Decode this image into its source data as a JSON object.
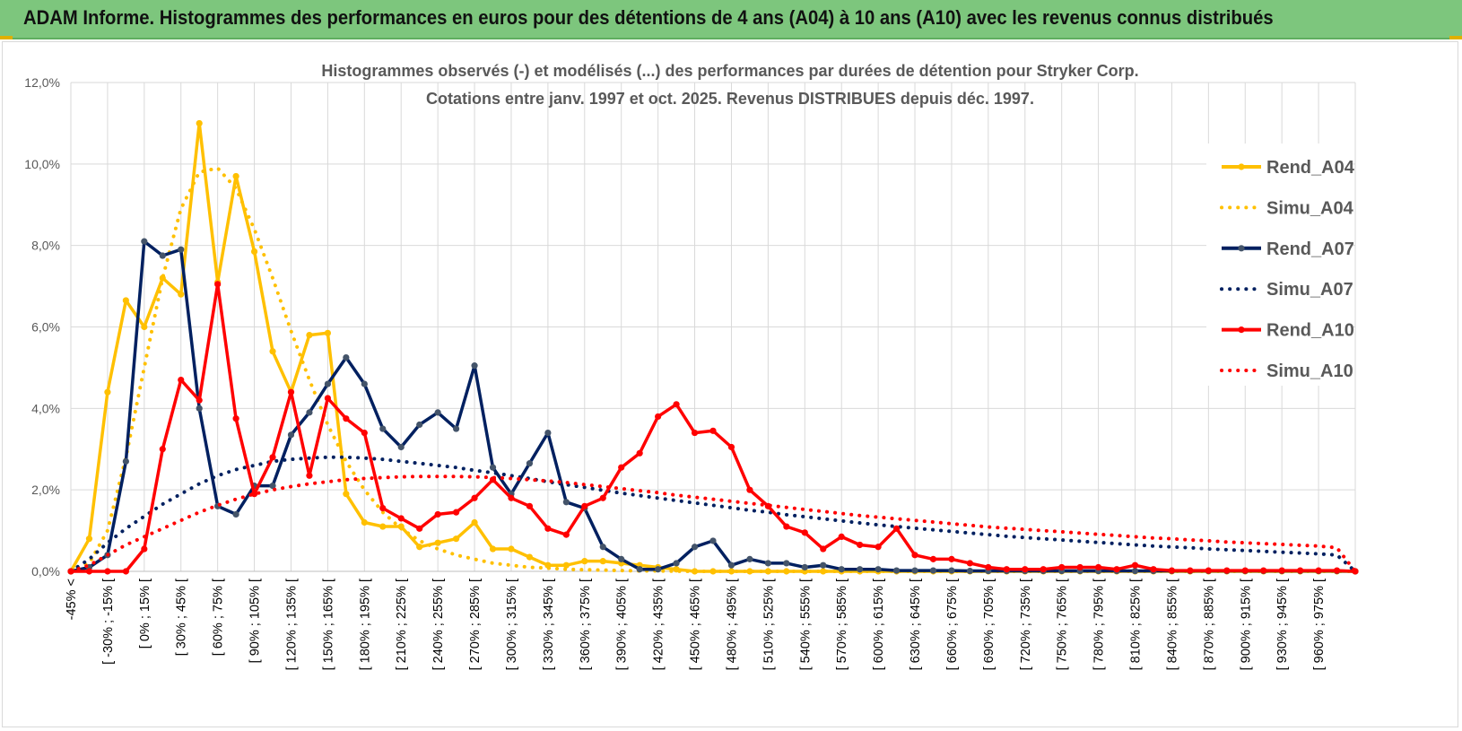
{
  "header": {
    "title": "ADAM Informe. Histogrammes des performances en euros pour des détentions de 4 ans (A04) à 10 ans (A10) avec les revenus connus distribués"
  },
  "chart_data": {
    "type": "line",
    "title": "Histogrammes observés (-) et modélisés (...) des performances par durées de détention pour Stryker Corp.",
    "subtitle": "Cotations entre janv. 1997 et oct. 2025. Revenus DISTRIBUES depuis déc. 1997.",
    "ylim": [
      0,
      12
    ],
    "yticks": [
      "0,0%",
      "2,0%",
      "4,0%",
      "6,0%",
      "8,0%",
      "10,0%",
      "12,0%"
    ],
    "grid": true,
    "legend_position": "right",
    "xtick_labels": [
      "-45% <",
      "[ -30% ; -15% [",
      "[ 0% ; 15% [",
      "[ 30% ; 45% [",
      "[ 60% ; 75% [",
      "[ 90% ; 105% [",
      "[ 120% ; 135% [",
      "[ 150% ; 165% [",
      "[ 180% ; 195% [",
      "[ 210% ; 225% [",
      "[ 240% ; 255% [",
      "[ 270% ; 285% [",
      "[ 300% ; 315% [",
      "[ 330% ; 345% [",
      "[ 360% ; 375% [",
      "[ 390% ; 405% [",
      "[ 420% ; 435% [",
      "[ 450% ; 465% [",
      "[ 480% ; 495% [",
      "[ 510% ; 525% [",
      "[ 540% ; 555% [",
      "[ 570% ; 585% [",
      "[ 600% ; 615% [",
      "[ 630% ; 645% [",
      "[ 660% ; 675% [",
      "[ 690% ; 705% [",
      "[ 720% ; 735% [",
      "[ 750% ; 765% [",
      "[ 780% ; 795% [",
      "[ 810% ; 825% [",
      "[ 840% ; 855% [",
      "[ 870% ; 885% [",
      "[ 900% ; 915% [",
      "[ 930% ; 945% [",
      "[ 960% ; 975% ["
    ],
    "series": [
      {
        "name": "Rend_A04",
        "color": "#ffc000",
        "style": "solid",
        "markers": true,
        "values": [
          0,
          0.8,
          4.4,
          6.65,
          6.0,
          7.2,
          6.8,
          11.0,
          7.1,
          9.7,
          7.85,
          5.4,
          4.4,
          5.8,
          5.85,
          1.9,
          1.2,
          1.1,
          1.1,
          0.6,
          0.7,
          0.8,
          1.2,
          0.55,
          0.55,
          0.35,
          0.15,
          0.15,
          0.25,
          0.25,
          0.2,
          0.15,
          0.1,
          0.05,
          0.0
        ]
      },
      {
        "name": "Simu_A04",
        "color": "#ffc000",
        "style": "dotted",
        "markers": false,
        "values": [
          0,
          0.2,
          1.0,
          2.8,
          5.0,
          7.2,
          8.9,
          9.8,
          9.9,
          9.4,
          8.4,
          7.2,
          5.9,
          4.7,
          3.6,
          2.7,
          2.0,
          1.45,
          1.05,
          0.75,
          0.55,
          0.4,
          0.3,
          0.2,
          0.15,
          0.1,
          0.08,
          0.05,
          0.04,
          0.03,
          0.02,
          0.01,
          0.01,
          0.005,
          0.0
        ]
      },
      {
        "name": "Rend_A07",
        "color": "#002060",
        "style": "solid",
        "markers": true,
        "values": [
          0,
          0.1,
          0.4,
          2.7,
          8.1,
          7.75,
          7.9,
          4.0,
          1.6,
          1.4,
          2.1,
          2.1,
          3.35,
          3.9,
          4.6,
          5.25,
          4.6,
          3.5,
          3.05,
          3.6,
          3.9,
          3.5,
          5.05,
          2.55,
          1.9,
          2.65,
          3.4,
          1.7,
          1.55,
          0.6,
          0.3,
          0.05,
          0.05,
          0.2,
          0.6
        ]
      },
      {
        "name": "Simu_A07",
        "color": "#002060",
        "style": "dotted",
        "markers": false,
        "values": [
          0,
          0.3,
          0.7,
          1.05,
          1.35,
          1.65,
          1.9,
          2.15,
          2.35,
          2.5,
          2.6,
          2.7,
          2.75,
          2.78,
          2.8,
          2.8,
          2.78,
          2.75,
          2.7,
          2.65,
          2.6,
          2.55,
          2.48,
          2.42,
          2.35,
          2.28,
          2.2,
          2.13,
          2.06,
          1.99,
          1.92,
          1.86,
          1.8,
          1.74,
          1.68
        ]
      },
      {
        "name": "Rend_A10",
        "color": "#ff0000",
        "style": "solid",
        "markers": true,
        "values": [
          0,
          0,
          0,
          0,
          0.55,
          3.0,
          4.7,
          4.2,
          7.05,
          3.75,
          1.9,
          2.8,
          4.4,
          2.35,
          4.25,
          3.75,
          3.4,
          1.55,
          1.3,
          1.05,
          1.4,
          1.45,
          1.8,
          2.25,
          1.8,
          1.6,
          1.05,
          0.9,
          1.6,
          1.8,
          2.55,
          2.9,
          3.8,
          4.1,
          3.4
        ]
      },
      {
        "name": "Simu_A10",
        "color": "#ff0000",
        "style": "dotted",
        "markers": false,
        "values": [
          0,
          0.15,
          0.4,
          0.65,
          0.85,
          1.05,
          1.25,
          1.45,
          1.62,
          1.77,
          1.9,
          2.0,
          2.08,
          2.15,
          2.2,
          2.25,
          2.28,
          2.3,
          2.32,
          2.33,
          2.33,
          2.33,
          2.32,
          2.3,
          2.28,
          2.25,
          2.22,
          2.18,
          2.13,
          2.08,
          2.03,
          1.98,
          1.93,
          1.87,
          1.82
        ]
      }
    ],
    "series_tail": {
      "Rend_A04": [
        0,
        0,
        0,
        0,
        0,
        0,
        0,
        0,
        0,
        0,
        0,
        0,
        0,
        0,
        0,
        0,
        0,
        0,
        0,
        0,
        0,
        0,
        0,
        0,
        0,
        0,
        0,
        0,
        0,
        0,
        0,
        0,
        0,
        0,
        0,
        0
      ],
      "Simu_A04": [
        0,
        0,
        0,
        0,
        0,
        0,
        0,
        0,
        0,
        0,
        0,
        0,
        0,
        0,
        0,
        0,
        0,
        0,
        0,
        0,
        0,
        0,
        0,
        0,
        0,
        0,
        0,
        0,
        0,
        0,
        0,
        0,
        0,
        0,
        0,
        0
      ],
      "Rend_A07": [
        0.75,
        0.15,
        0.3,
        0.2,
        0.2,
        0.1,
        0.15,
        0.05,
        0.05,
        0.05,
        0.02,
        0.02,
        0.02,
        0.02,
        0.01,
        0.01,
        0.01,
        0.01,
        0.01,
        0.01,
        0.01,
        0.01,
        0.01,
        0.01,
        0.01,
        0.01,
        0.01,
        0.01,
        0.01,
        0.01,
        0.01,
        0.01,
        0.01,
        0.01,
        0.01,
        0
      ],
      "Simu_A07": [
        1.62,
        1.56,
        1.5,
        1.45,
        1.39,
        1.34,
        1.29,
        1.24,
        1.19,
        1.14,
        1.1,
        1.06,
        1.02,
        0.98,
        0.94,
        0.9,
        0.86,
        0.83,
        0.8,
        0.77,
        0.74,
        0.71,
        0.68,
        0.65,
        0.62,
        0.6,
        0.58,
        0.55,
        0.53,
        0.51,
        0.49,
        0.47,
        0.45,
        0.43,
        0.4,
        0
      ],
      "Rend_A10": [
        3.45,
        3.05,
        2.0,
        1.6,
        1.1,
        0.95,
        0.55,
        0.85,
        0.65,
        0.6,
        1.05,
        0.4,
        0.3,
        0.3,
        0.2,
        0.1,
        0.05,
        0.05,
        0.05,
        0.1,
        0.1,
        0.1,
        0.05,
        0.15,
        0.05,
        0.02,
        0.02,
        0.02,
        0.02,
        0.02,
        0.02,
        0.02,
        0.02,
        0.02,
        0.02,
        0
      ],
      "Simu_A10": [
        1.77,
        1.72,
        1.67,
        1.62,
        1.57,
        1.52,
        1.47,
        1.42,
        1.37,
        1.33,
        1.29,
        1.25,
        1.21,
        1.17,
        1.13,
        1.09,
        1.06,
        1.03,
        1.0,
        0.97,
        0.94,
        0.91,
        0.88,
        0.85,
        0.82,
        0.8,
        0.77,
        0.75,
        0.72,
        0.7,
        0.68,
        0.66,
        0.64,
        0.62,
        0.58,
        0
      ]
    }
  }
}
